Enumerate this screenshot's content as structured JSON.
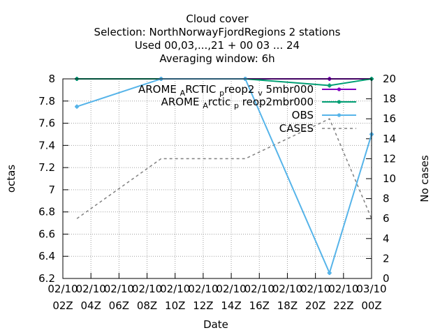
{
  "chart_data": {
    "type": "line",
    "title_lines": [
      "Cloud cover",
      "Selection: NorthNorwayFjordRegions      2 stations",
      "Used  00,03,...,21  + 00 03 ... 24",
      "Averaging window:  6h"
    ],
    "xlabel": "Date",
    "ylabel": "octas",
    "y2label": "No cases",
    "x_hours": [
      0,
      2,
      4,
      6,
      8,
      10,
      12,
      14,
      16,
      18,
      20,
      22,
      24
    ],
    "x_tick_labels": [
      [
        "02/10",
        "02Z"
      ],
      [
        "02/10",
        "04Z"
      ],
      [
        "02/10",
        "06Z"
      ],
      [
        "02/10",
        "08Z"
      ],
      [
        "02/10",
        "10Z"
      ],
      [
        "02/10",
        "12Z"
      ],
      [
        "02/10",
        "14Z"
      ],
      [
        "02/10",
        "16Z"
      ],
      [
        "02/10",
        "18Z"
      ],
      [
        "02/10",
        "20Z"
      ],
      [
        "02/10",
        "22Z"
      ],
      [
        "03/10",
        "00Z"
      ]
    ],
    "xlim_hours": [
      2,
      24
    ],
    "ylim": [
      6.2,
      8
    ],
    "y_ticks": [
      "6.2",
      "6.4",
      "6.6",
      "6.8",
      "7",
      "7.2",
      "7.4",
      "7.6",
      "7.8",
      "8"
    ],
    "y2lim": [
      0,
      20
    ],
    "y2_ticks": [
      "0",
      "2",
      "4",
      "6",
      "8",
      "10",
      "12",
      "14",
      "16",
      "18",
      "20"
    ],
    "grid": true,
    "legend_position": "top-right",
    "series": [
      {
        "name": "AROME_ARCTIC_preop2_v5mbr000",
        "legend_main": [
          "AROME",
          "RCTIC",
          "reop2",
          "5mbr000"
        ],
        "legend_sub": [
          "A",
          "p",
          "v"
        ],
        "color": "#8000c0",
        "axis": "y1",
        "style": "solid",
        "x": [
          3,
          9,
          15,
          21,
          24
        ],
        "y": [
          8,
          8,
          8,
          8,
          8
        ]
      },
      {
        "name": "AROME_Arctic_preop2mbr000",
        "legend_main": [
          "AROME",
          "rctic",
          "reop2mbr000"
        ],
        "legend_sub": [
          "A",
          "p"
        ],
        "color": "#009e73",
        "axis": "y1",
        "style": "solid",
        "x": [
          3,
          9,
          15,
          21,
          24
        ],
        "y": [
          8,
          8,
          8,
          7.94,
          8
        ]
      },
      {
        "name": "OBS",
        "color": "#56b4e9",
        "axis": "y1",
        "style": "solid",
        "x": [
          3,
          9,
          15,
          21,
          24
        ],
        "y": [
          7.75,
          8,
          8,
          6.25,
          7.5
        ]
      },
      {
        "name": "CASES",
        "color": "#808080",
        "axis": "y2",
        "style": "dashed",
        "x": [
          3,
          9,
          15,
          21,
          24
        ],
        "y": [
          6,
          12,
          12,
          16,
          6
        ]
      }
    ]
  }
}
